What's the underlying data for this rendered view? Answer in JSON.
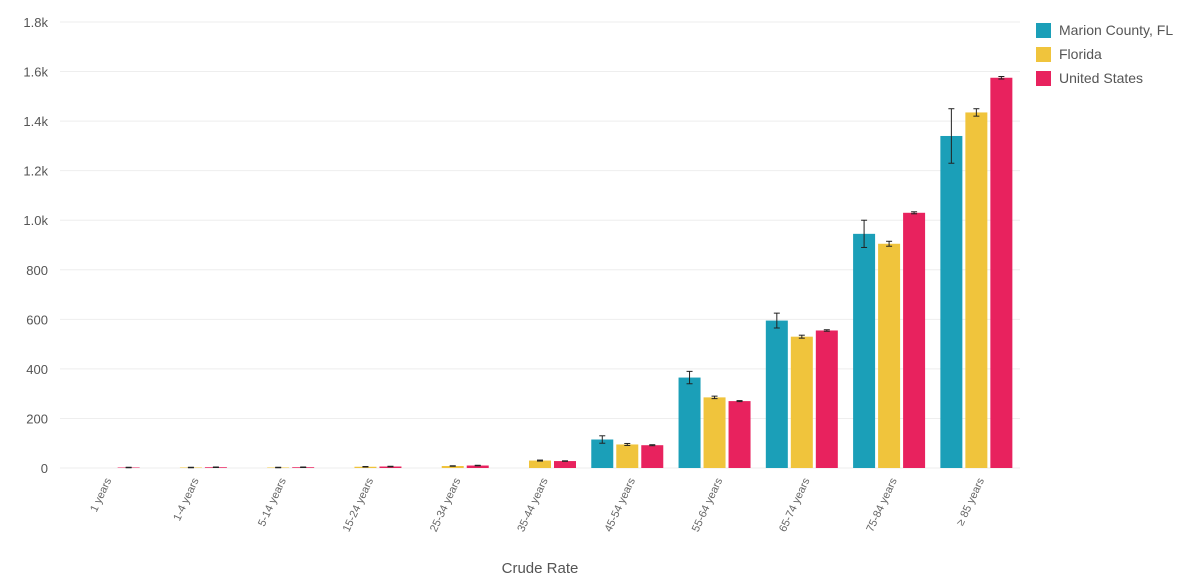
{
  "chart_data": {
    "type": "bar",
    "xlabel": "Crude Rate",
    "ylabel": "",
    "ylim": [
      0,
      1800
    ],
    "yticks": [
      0,
      200,
      400,
      600,
      800,
      1000,
      1200,
      1400,
      1600,
      1800
    ],
    "ytick_labels": [
      "0",
      "200",
      "400",
      "600",
      "800",
      "1.0k",
      "1.2k",
      "1.4k",
      "1.6k",
      "1.8k"
    ],
    "categories": [
      "1 years",
      "1-4 years",
      "5-14 years",
      "15-24 years",
      "25-34 years",
      "35-44 years",
      "45-54 years",
      "55-64 years",
      "65-74 years",
      "75-84 years",
      "≥ 85 years"
    ],
    "series": [
      {
        "name": "Marion County, FL",
        "color": "#1b9fb8",
        "values": [
          0,
          0,
          0,
          0,
          0,
          0,
          115,
          365,
          595,
          945,
          1340
        ],
        "errors": [
          0,
          0,
          0,
          0,
          0,
          0,
          15,
          25,
          30,
          55,
          110
        ]
      },
      {
        "name": "Florida",
        "color": "#f0c43c",
        "values": [
          0,
          2,
          2,
          5,
          8,
          30,
          95,
          285,
          530,
          905,
          1435
        ],
        "errors": [
          0,
          1,
          1,
          1,
          1,
          2,
          4,
          5,
          6,
          10,
          15
        ]
      },
      {
        "name": "United States",
        "color": "#e8225e",
        "values": [
          2,
          3,
          3,
          6,
          10,
          28,
          92,
          270,
          555,
          1030,
          1575
        ],
        "errors": [
          1,
          1,
          1,
          1,
          1,
          1,
          2,
          2,
          3,
          4,
          5
        ]
      }
    ],
    "legend_position": "top-right",
    "grid": true
  }
}
